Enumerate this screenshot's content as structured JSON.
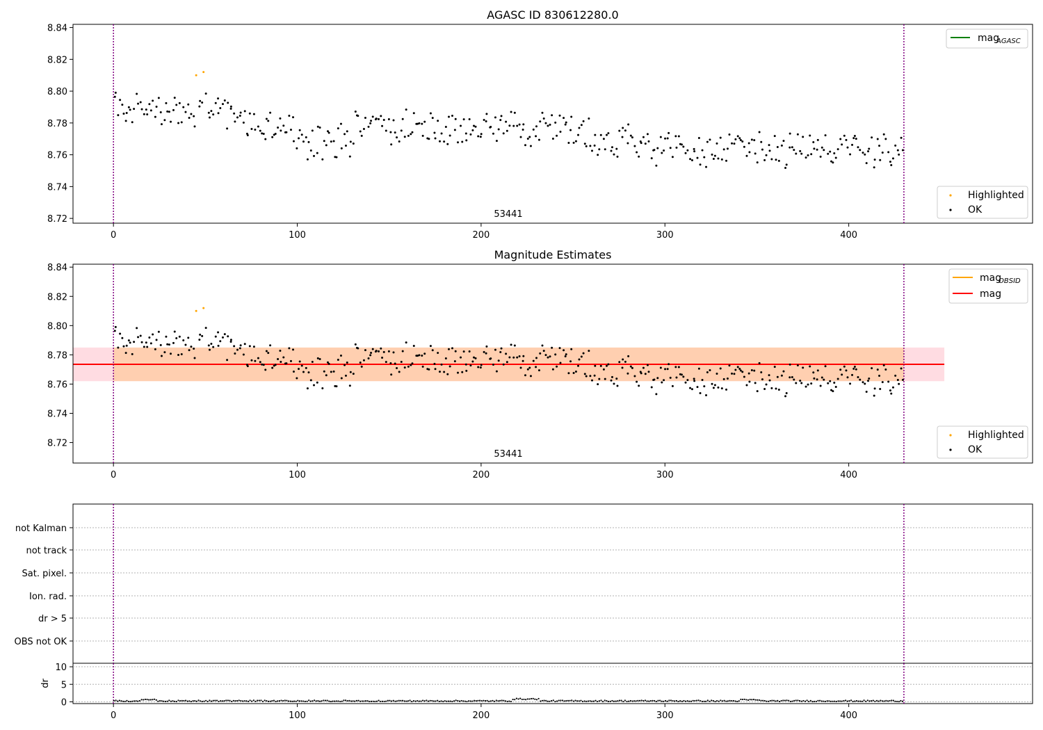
{
  "chart_data": [
    {
      "type": "scatter",
      "title": "AGASC ID 830612280.0",
      "xlim": [
        -22,
        500
      ],
      "ylim": [
        8.717,
        8.842
      ],
      "xticks": [
        0,
        100,
        200,
        300,
        400
      ],
      "yticks": [
        8.72,
        8.74,
        8.76,
        8.78,
        8.8,
        8.82,
        8.84
      ],
      "ytick_labels": [
        "8.72",
        "8.74",
        "8.76",
        "8.78",
        "8.80",
        "8.82",
        "8.84"
      ],
      "vlines": [
        0,
        430
      ],
      "annotation": "53441",
      "lines_legend": [
        {
          "label": "mag",
          "sub": "AGASC",
          "color": "#008000"
        }
      ],
      "points_legend": [
        {
          "label": "Highlighted",
          "color": "#ffa500"
        },
        {
          "label": "OK",
          "color": "#000000"
        }
      ],
      "series": [
        {
          "name": "Highlighted",
          "color": "#ffa500",
          "x": [
            45,
            49
          ],
          "y": [
            8.81,
            8.812
          ]
        },
        {
          "name": "OK",
          "color": "#000000",
          "x": [],
          "y": []
        }
      ]
    },
    {
      "type": "scatter",
      "title": "Magnitude Estimates",
      "xlim": [
        -22,
        500
      ],
      "ylim": [
        8.706,
        8.842
      ],
      "xticks": [
        0,
        100,
        200,
        300,
        400
      ],
      "yticks": [
        8.72,
        8.74,
        8.76,
        8.78,
        8.8,
        8.82,
        8.84
      ],
      "ytick_labels": [
        "8.72",
        "8.74",
        "8.76",
        "8.78",
        "8.80",
        "8.82",
        "8.84"
      ],
      "vlines": [
        0,
        430
      ],
      "annotation": "53441",
      "mag_line": 8.7735,
      "mag_band": [
        8.762,
        8.785
      ],
      "band_x": [
        -22,
        452
      ],
      "band_inner_x": [
        0,
        430
      ],
      "lines_legend": [
        {
          "label": "mag",
          "sub": "OBSID",
          "color": "#ffa500"
        },
        {
          "label": "mag",
          "sub": "",
          "color": "#ff0000"
        }
      ],
      "points_legend": [
        {
          "label": "Highlighted",
          "color": "#ffa500"
        },
        {
          "label": "OK",
          "color": "#000000"
        }
      ]
    },
    {
      "type": "scatter",
      "category_labels": [
        "not Kalman",
        "not track",
        "Sat. pixel.",
        "Ion. rad.",
        "dr > 5",
        "OBS not OK"
      ],
      "dr": {
        "ylabel": "dr",
        "ylim": [
          -0.5,
          11
        ],
        "yticks": [
          0,
          5,
          10
        ],
        "ytick_labels": [
          "0",
          "5",
          "10"
        ]
      },
      "xlim": [
        -22,
        500
      ],
      "xticks": [
        0,
        100,
        200,
        300,
        400
      ],
      "vlines": [
        0,
        430
      ]
    }
  ]
}
